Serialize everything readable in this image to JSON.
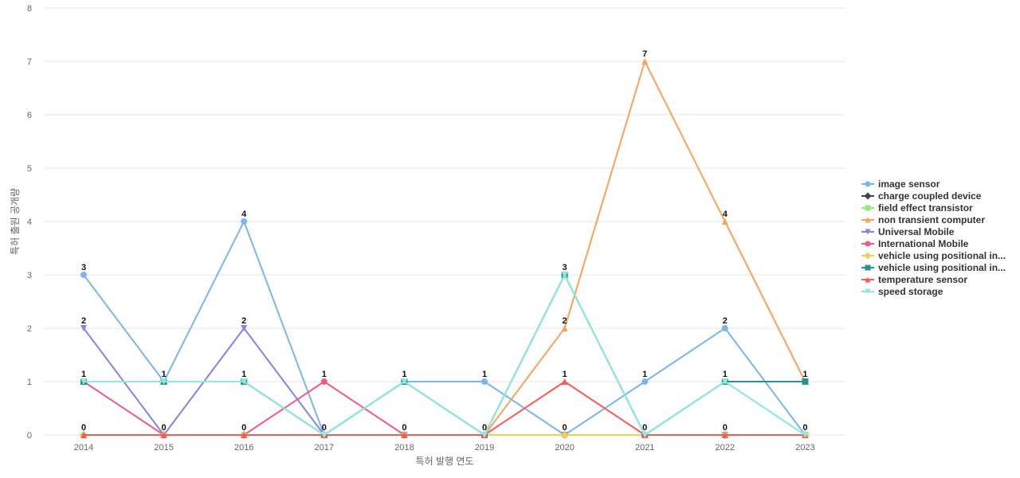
{
  "chart_data": {
    "type": "line",
    "title": "",
    "xlabel": "특허 발행 연도",
    "ylabel": "특허 출원 공개량",
    "x": [
      "2014",
      "2015",
      "2016",
      "2017",
      "2018",
      "2019",
      "2020",
      "2021",
      "2022",
      "2023"
    ],
    "ylim": [
      0,
      8
    ],
    "yticks": [
      0,
      1,
      2,
      3,
      4,
      5,
      6,
      7,
      8
    ],
    "grid": "horizontal",
    "legend_position": "right",
    "series": [
      {
        "name": "image sensor",
        "color": "#7cb5ec",
        "marker": "circle",
        "values": [
          3,
          1,
          4,
          0,
          1,
          1,
          0,
          1,
          2,
          0
        ]
      },
      {
        "name": "charge coupled device",
        "color": "#434348",
        "marker": "diamond",
        "values": [
          0,
          0,
          0,
          0,
          0,
          0,
          0,
          0,
          0,
          0
        ]
      },
      {
        "name": "field effect transistor",
        "color": "#90ed7d",
        "marker": "square",
        "values": [
          1,
          1,
          1,
          0,
          1,
          0,
          3,
          0,
          1,
          0
        ]
      },
      {
        "name": "non transient computer",
        "color": "#f7a35c",
        "marker": "triangle",
        "values": [
          0,
          0,
          0,
          0,
          0,
          0,
          2,
          7,
          4,
          1
        ]
      },
      {
        "name": "Universal Mobile",
        "color": "#8085e9",
        "marker": "triangle-down",
        "values": [
          2,
          0,
          2,
          0,
          0,
          0,
          0,
          0,
          0,
          0
        ]
      },
      {
        "name": "International Mobile",
        "color": "#f15c80",
        "marker": "circle",
        "values": [
          1,
          0,
          0,
          1,
          0,
          0,
          0,
          0,
          0,
          0
        ]
      },
      {
        "name": "vehicle using positional in...",
        "color": "#e4d354",
        "marker": "diamond",
        "values": [
          0,
          0,
          0,
          0,
          0,
          0,
          0,
          0,
          0,
          0
        ]
      },
      {
        "name": "vehicle using positional in...",
        "color": "#2b908f",
        "marker": "square",
        "values": [
          1,
          1,
          1,
          0,
          1,
          0,
          3,
          0,
          1,
          1
        ]
      },
      {
        "name": "temperature sensor",
        "color": "#f45b5b",
        "marker": "triangle",
        "values": [
          0,
          0,
          0,
          0,
          0,
          0,
          1,
          0,
          0,
          0
        ]
      },
      {
        "name": "speed storage",
        "color": "#91e8e1",
        "marker": "triangle-down",
        "values": [
          1,
          1,
          1,
          0,
          1,
          0,
          3,
          0,
          1,
          0
        ]
      }
    ],
    "data_labels": [
      {
        "x": "2014",
        "values": [
          3,
          2,
          1,
          0
        ]
      },
      {
        "x": "2015",
        "values": [
          1,
          0
        ]
      },
      {
        "x": "2016",
        "values": [
          4,
          2,
          1,
          0
        ]
      },
      {
        "x": "2017",
        "values": [
          1,
          0
        ]
      },
      {
        "x": "2018",
        "values": [
          1,
          0
        ]
      },
      {
        "x": "2019",
        "values": [
          1,
          0
        ]
      },
      {
        "x": "2020",
        "values": [
          3,
          2,
          1,
          0
        ]
      },
      {
        "x": "2021",
        "values": [
          7,
          1,
          0
        ]
      },
      {
        "x": "2022",
        "values": [
          4,
          2,
          1,
          0
        ]
      },
      {
        "x": "2023",
        "values": [
          1,
          0
        ]
      }
    ]
  }
}
